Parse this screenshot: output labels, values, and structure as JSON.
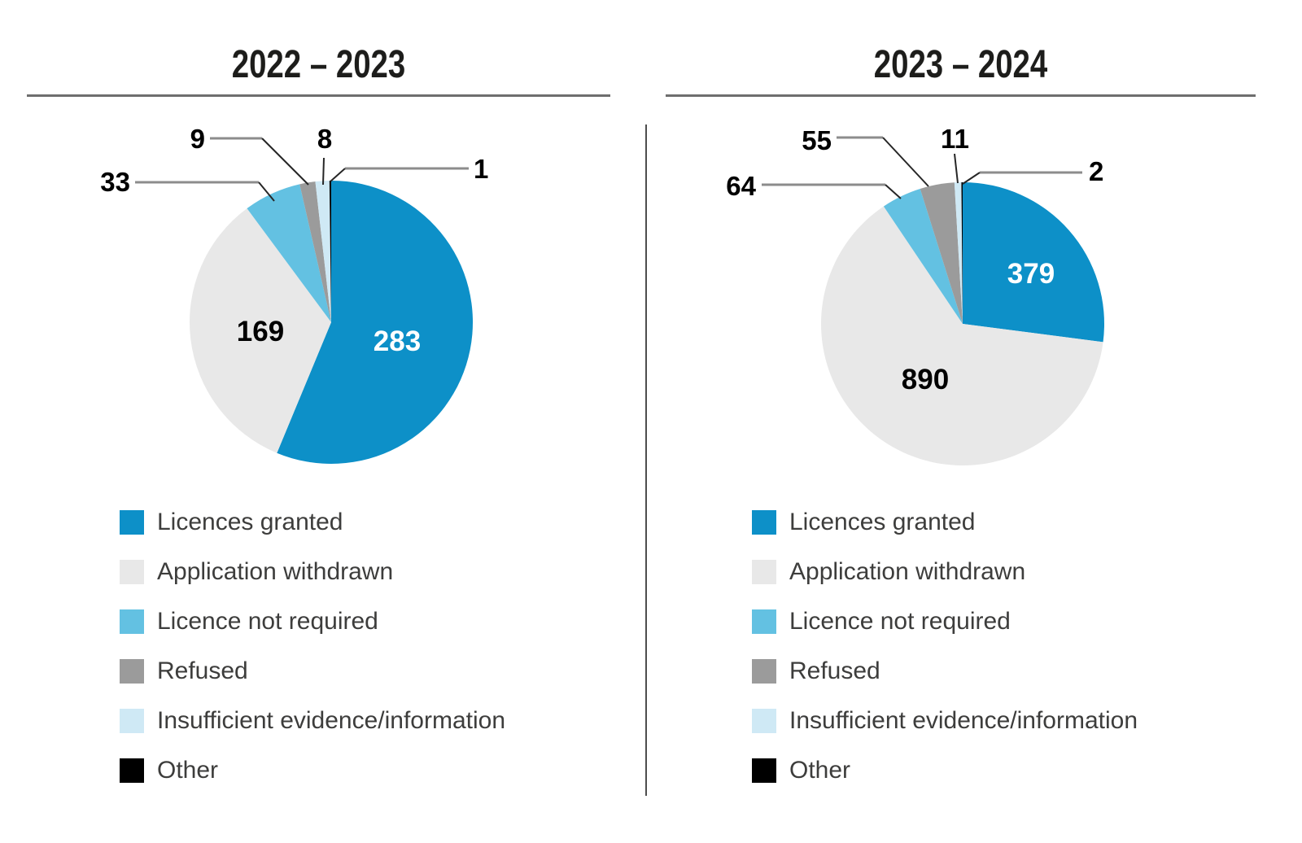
{
  "chart_data": [
    {
      "type": "pie",
      "title": "2022 – 2023",
      "categories": [
        "Licences granted",
        "Application withdrawn",
        "Licence not required",
        "Refused",
        "Insufficient evidence/information",
        "Other"
      ],
      "values": [
        283,
        169,
        33,
        9,
        8,
        1
      ],
      "total": 503,
      "colors": [
        "#0d90c8",
        "#e8e8e8",
        "#63c1e2",
        "#9b9b9b",
        "#cfe9f5",
        "#000000"
      ],
      "start_angle_deg": 0,
      "direction": "clockwise",
      "value_label_placement": {
        "inside": [
          "Licences granted",
          "Application withdrawn"
        ],
        "callout": [
          "Licence not required",
          "Refused",
          "Insufficient evidence/information",
          "Other"
        ]
      },
      "legend_position": "below-left"
    },
    {
      "type": "pie",
      "title": "2023 – 2024",
      "categories": [
        "Licences granted",
        "Application withdrawn",
        "Licence not required",
        "Refused",
        "Insufficient evidence/information",
        "Other"
      ],
      "values": [
        379,
        890,
        64,
        55,
        11,
        2
      ],
      "total": 1401,
      "colors": [
        "#0d90c8",
        "#e8e8e8",
        "#63c1e2",
        "#9b9b9b",
        "#cfe9f5",
        "#000000"
      ],
      "start_angle_deg": 0,
      "direction": "clockwise",
      "value_label_placement": {
        "inside": [
          "Licences granted",
          "Application withdrawn"
        ],
        "callout": [
          "Licence not required",
          "Refused",
          "Insufficient evidence/information",
          "Other"
        ]
      },
      "legend_position": "below-left"
    }
  ],
  "legend": {
    "items": [
      {
        "label": "Licences granted",
        "color": "#0d90c8"
      },
      {
        "label": "Application withdrawn",
        "color": "#e8e8e8"
      },
      {
        "label": "Licence not required",
        "color": "#63c1e2"
      },
      {
        "label": "Refused",
        "color": "#9b9b9b"
      },
      {
        "label": "Insufficient evidence/information",
        "color": "#cfe9f5"
      },
      {
        "label": "Other",
        "color": "#000000"
      }
    ]
  }
}
